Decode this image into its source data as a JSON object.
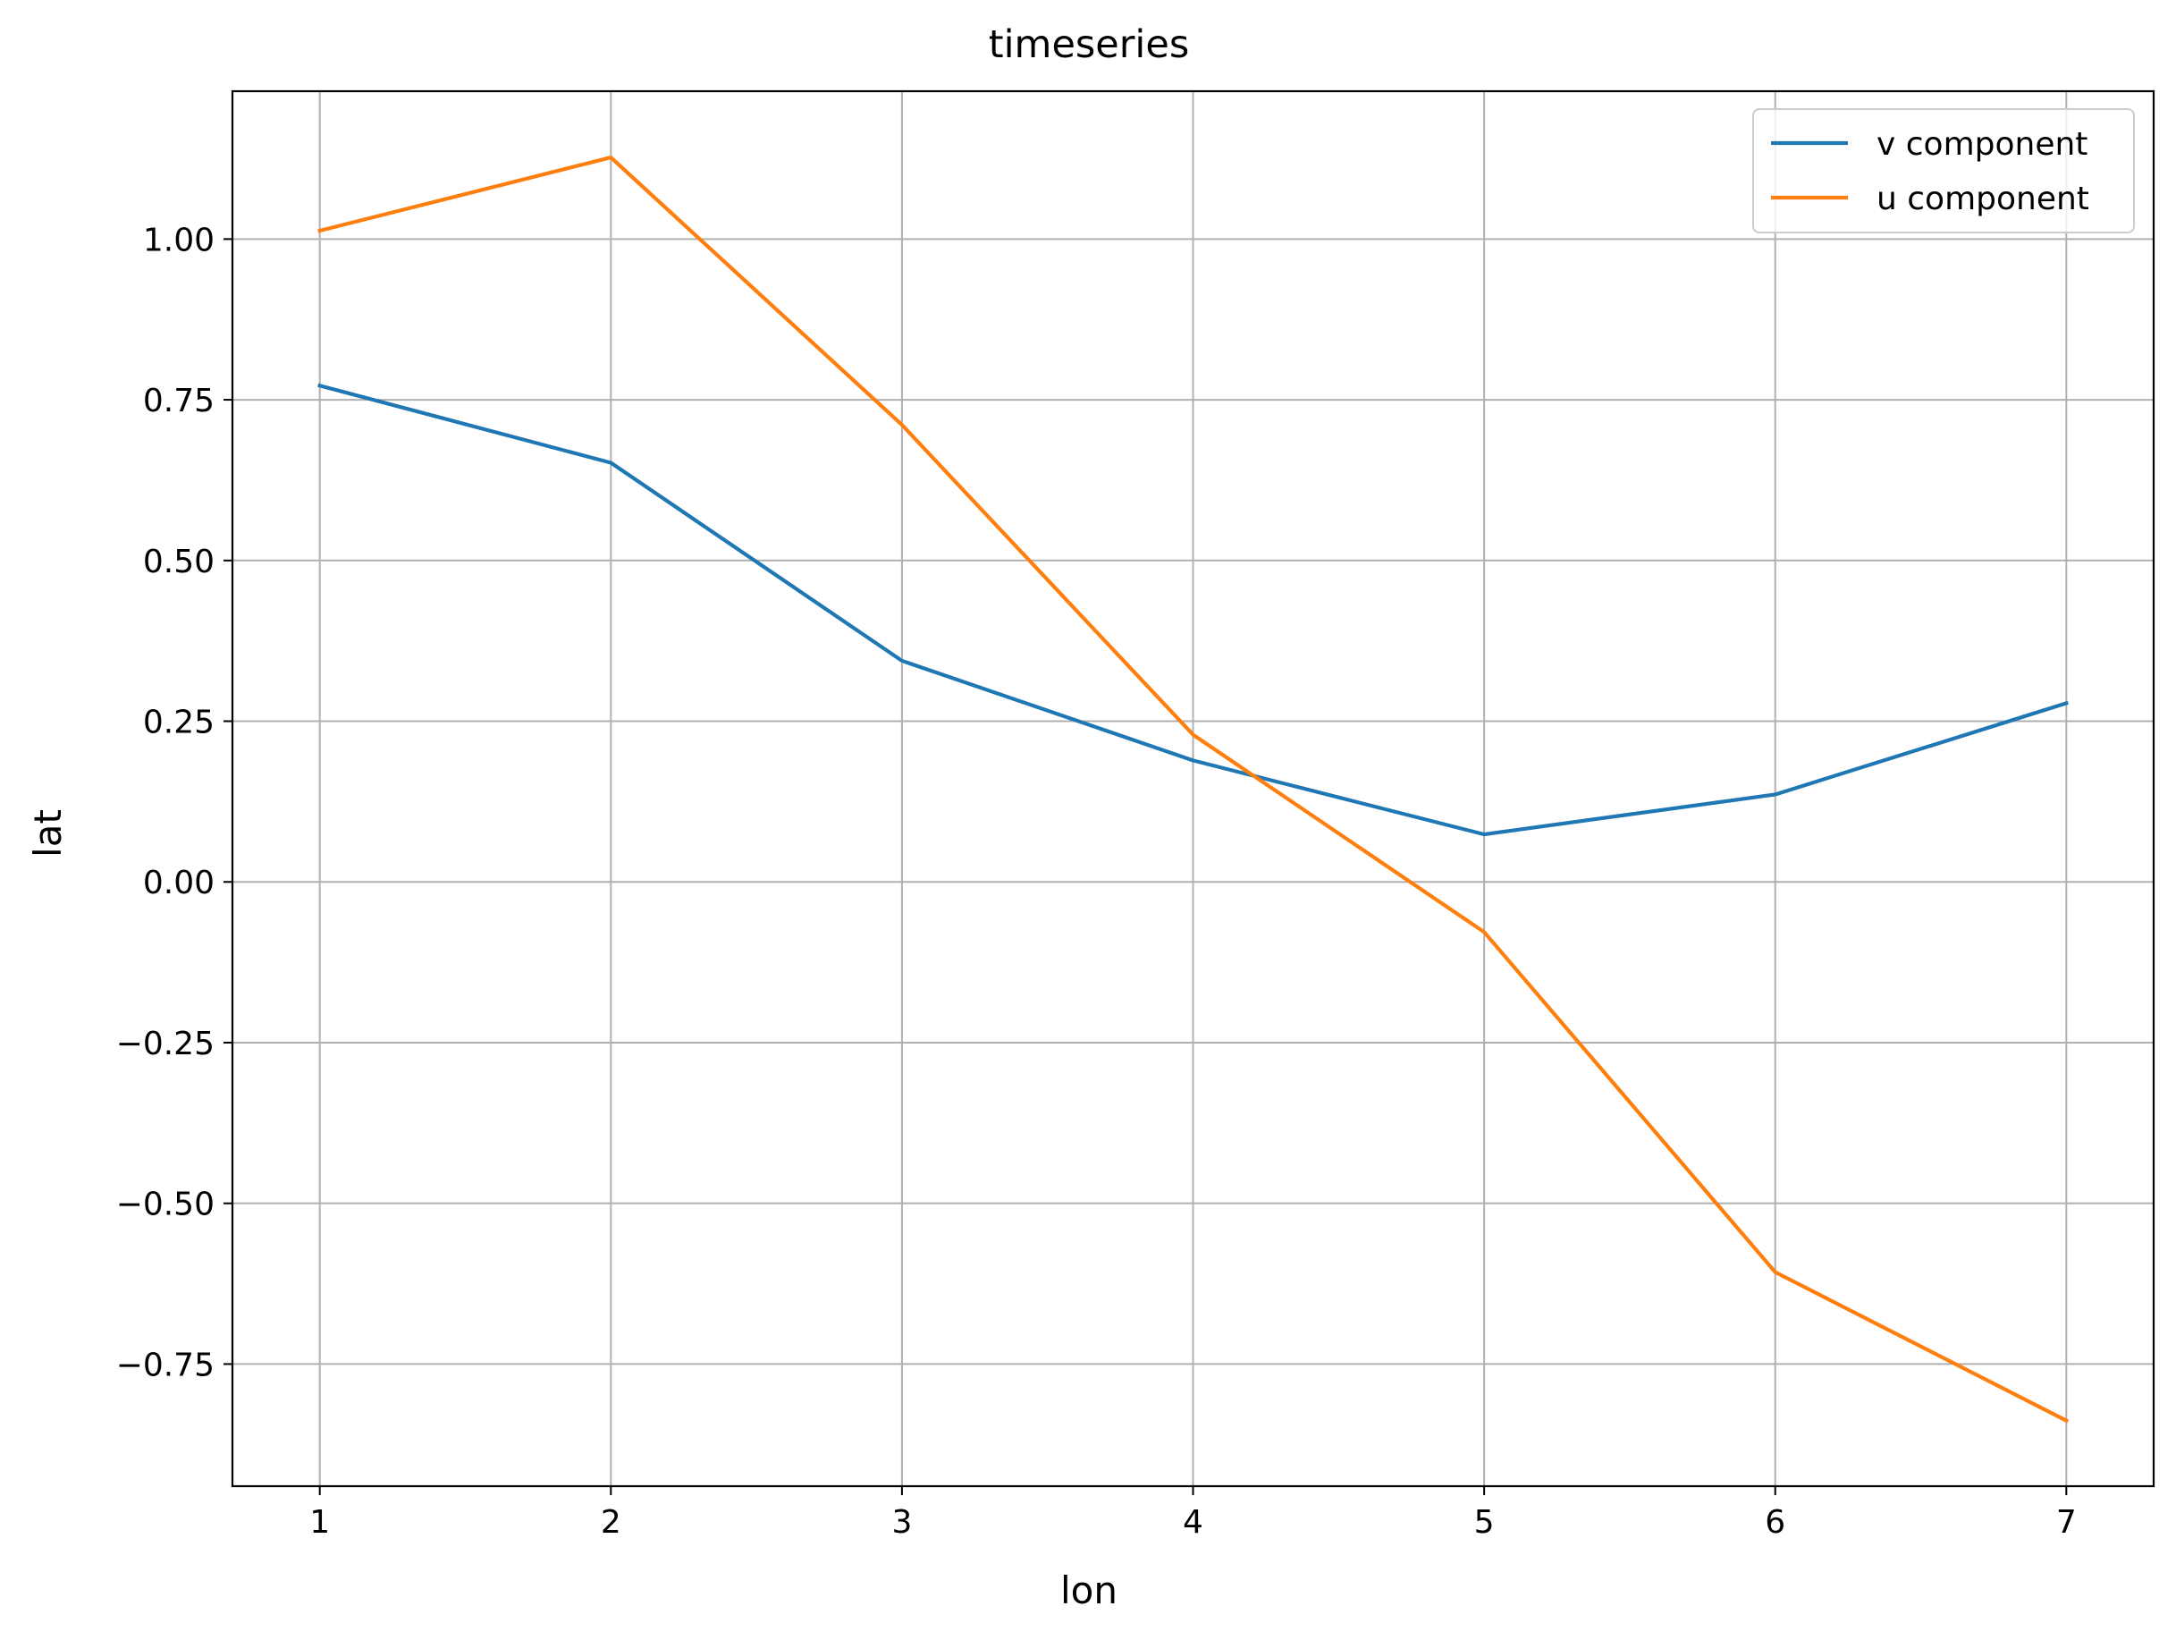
{
  "chart_data": {
    "type": "line",
    "title": "timeseries",
    "xlabel": "lon",
    "ylabel": "lat",
    "x": [
      1,
      2,
      3,
      4,
      5,
      6,
      7
    ],
    "xlim": [
      0.7,
      7.3
    ],
    "ylim": [
      -0.94,
      1.23
    ],
    "xticks": [
      1,
      2,
      3,
      4,
      5,
      6,
      7
    ],
    "xtick_labels": [
      "1",
      "2",
      "3",
      "4",
      "5",
      "6",
      "7"
    ],
    "yticks": [
      1.0,
      0.75,
      0.5,
      0.25,
      0.0,
      -0.25,
      -0.5,
      -0.75
    ],
    "ytick_labels": [
      "1.00",
      "0.75",
      "0.50",
      "0.25",
      "0.00",
      "−0.25",
      "−0.50",
      "−0.75"
    ],
    "grid": true,
    "legend_position": "top-right",
    "series": [
      {
        "name": "v component",
        "color": "#1f77b4",
        "values": [
          0.772,
          0.652,
          0.344,
          0.189,
          0.074,
          0.136,
          0.278
        ]
      },
      {
        "name": "u component",
        "color": "#ff7f0e",
        "values": [
          1.013,
          1.127,
          0.711,
          0.229,
          -0.078,
          -0.607,
          -0.838
        ]
      }
    ]
  }
}
